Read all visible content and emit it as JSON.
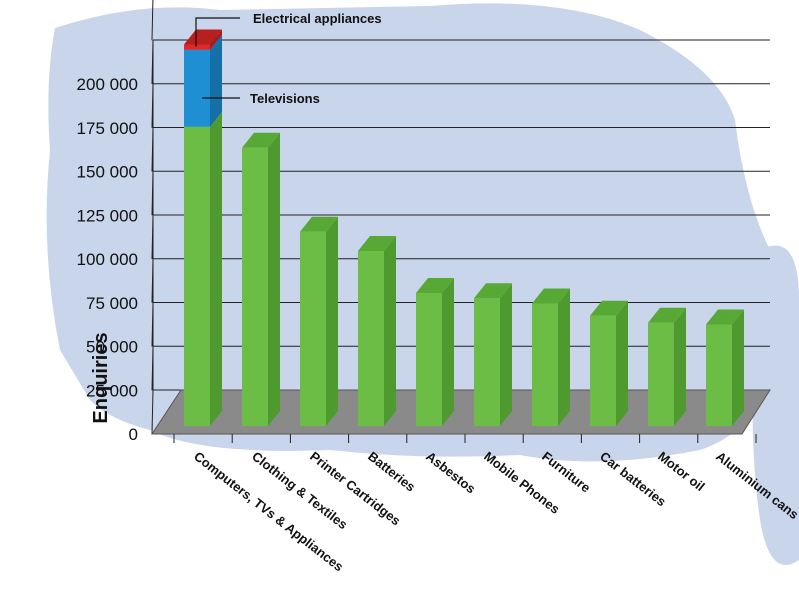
{
  "chart_data": {
    "type": "bar",
    "ylabel": "Enquiries",
    "xlabel": "",
    "title": "",
    "ylim": [
      0,
      225000
    ],
    "yticks": [
      0,
      25000,
      50000,
      75000,
      100000,
      125000,
      150000,
      175000,
      200000
    ],
    "ytick_labels": [
      "0",
      "25 000",
      "50 000",
      "75 000",
      "100 000",
      "125 000",
      "150 000",
      "175 000",
      "200 000"
    ],
    "grid": true,
    "categories": [
      "Computers, TVs & Appliances",
      "Clothing & Textiles",
      "Printer Cartridges",
      "Batteries",
      "Asbestos",
      "Mobile Phones",
      "Furniture",
      "Car batteries",
      "Motor oil",
      "Aluminium cans"
    ],
    "values": [
      218000,
      159000,
      111000,
      100000,
      76000,
      73000,
      70000,
      63000,
      59000,
      58000
    ],
    "stacked_segments": {
      "category": "Computers, TVs & Appliances",
      "segments": [
        {
          "label": "",
          "value": 171000,
          "color": "#6cbd45"
        },
        {
          "label": "Televisions",
          "value": 44000,
          "color": "#1f8fd4"
        },
        {
          "label": "Electrical appliances",
          "value": 3000,
          "color": "#e0282a"
        }
      ]
    },
    "colors": {
      "bar": "#6cbd45",
      "bar_side": "#4e9a2e",
      "bar_top": "#58a836",
      "floor": "#8a8a8a",
      "background_shape": "#c9d5ea"
    }
  }
}
